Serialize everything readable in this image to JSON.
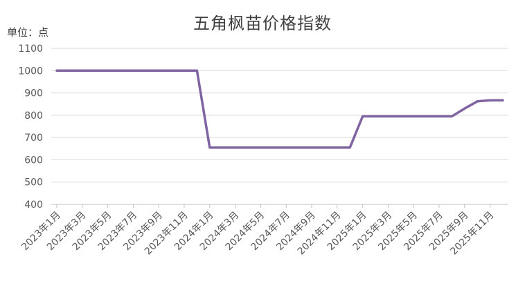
{
  "chart_data": {
    "type": "line",
    "title": "五角枫苗价格指数",
    "unit_label": "单位：点",
    "ylim": [
      400,
      1100
    ],
    "y_ticks": [
      400,
      500,
      600,
      700,
      800,
      900,
      1000,
      1100
    ],
    "grid": true,
    "legend": "none",
    "line_color": "#8064A2",
    "x_tick_labels": [
      "2023年1月",
      "2023年3月",
      "2023年5月",
      "2023年7月",
      "2023年9月",
      "2023年11月",
      "2024年1月",
      "2024年3月",
      "2024年5月",
      "2024年7月",
      "2024年9月",
      "2024年11月",
      "2025年1月",
      "2025年3月",
      "2025年5月",
      "2025年7月",
      "2025年9月",
      "2025年11月"
    ],
    "series": [
      {
        "x": [
          "2023年1月",
          "2023年2月",
          "2023年3月",
          "2023年4月",
          "2023年5月",
          "2023年6月",
          "2023年7月",
          "2023年8月",
          "2023年9月",
          "2023年10月",
          "2023年11月",
          "2023年12月",
          "2024年1月",
          "2024年2月",
          "2024年3月",
          "2024年4月",
          "2024年5月",
          "2024年6月",
          "2024年7月",
          "2024年8月",
          "2024年9月",
          "2024年10月",
          "2024年11月",
          "2024年12月",
          "2025年1月",
          "2025年2月",
          "2025年3月",
          "2025年4月",
          "2025年5月",
          "2025年6月",
          "2025年7月",
          "2025年8月",
          "2025年9月",
          "2025年10月",
          "2025年11月",
          "2025年12月"
        ],
        "values": [
          1000,
          1000,
          1000,
          1000,
          1000,
          1000,
          1000,
          1000,
          1000,
          1000,
          1000,
          1000,
          655,
          655,
          655,
          655,
          655,
          655,
          655,
          655,
          655,
          655,
          655,
          655,
          795,
          795,
          795,
          795,
          795,
          795,
          795,
          795,
          830,
          862,
          867,
          867
        ]
      }
    ]
  }
}
